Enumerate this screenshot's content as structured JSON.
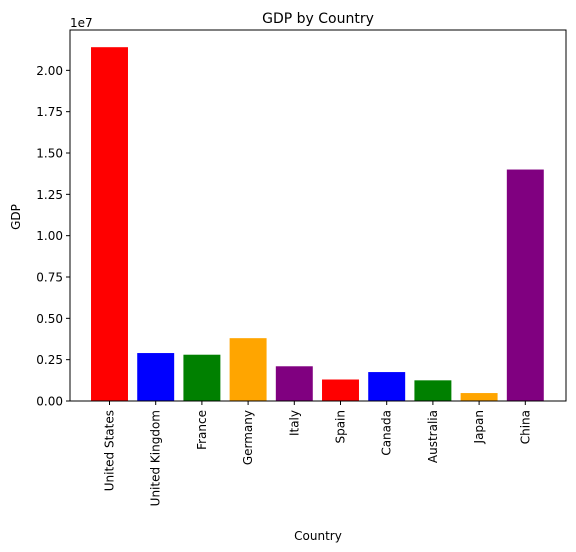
{
  "chart_data": {
    "type": "bar",
    "title": "GDP by Country",
    "xlabel": "Country",
    "ylabel": "GDP",
    "offset_text": "1e7",
    "ylim": [
      0,
      22440000
    ],
    "y_ticks": [
      0,
      2500000,
      5000000,
      7500000,
      10000000,
      12500000,
      15000000,
      17500000,
      20000000
    ],
    "y_tick_labels": [
      "0.00",
      "0.25",
      "0.50",
      "0.75",
      "1.00",
      "1.25",
      "1.50",
      "1.75",
      "2.00"
    ],
    "categories": [
      "United States",
      "United Kingdom",
      "France",
      "Germany",
      "Italy",
      "Spain",
      "Canada",
      "Australia",
      "Japan",
      "China"
    ],
    "values": [
      21400000,
      2900000,
      2800000,
      3800000,
      2100000,
      1300000,
      1750000,
      1250000,
      480000,
      14000000
    ],
    "colors": [
      "#ff0000",
      "#0000ff",
      "#008000",
      "#ffa500",
      "#800080",
      "#ff0000",
      "#0000ff",
      "#008000",
      "#ffa500",
      "#800080"
    ],
    "grid": false,
    "legend": "none"
  }
}
